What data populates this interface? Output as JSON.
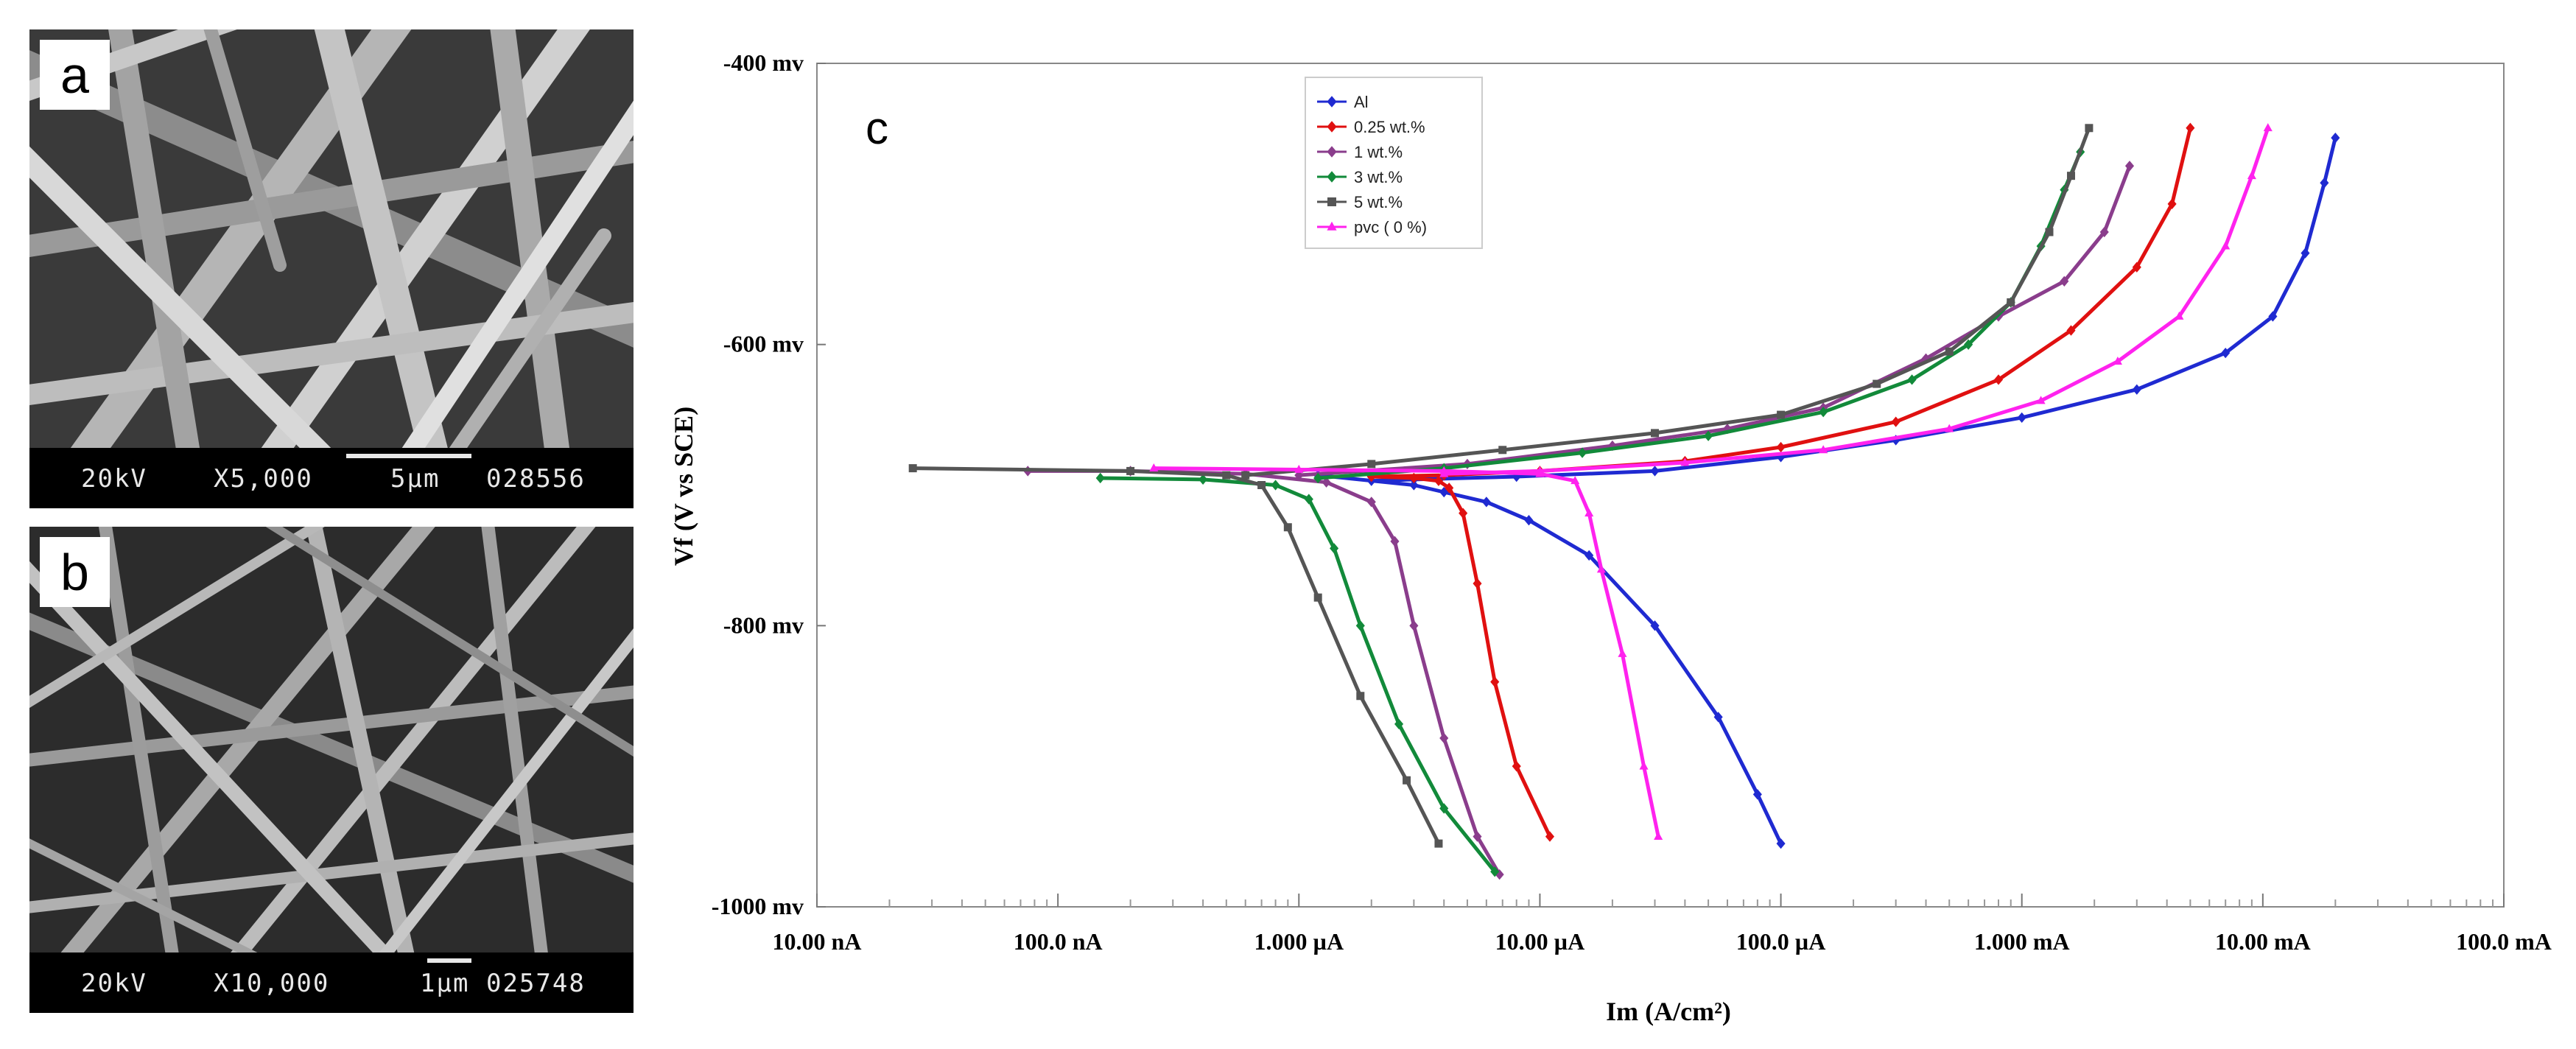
{
  "panels": {
    "a": {
      "letter": "a",
      "kv": "20kV",
      "magnification": "X5,000",
      "scale_label": "5μm",
      "file_number": "028556"
    },
    "b": {
      "letter": "b",
      "kv": "20kV",
      "magnification": "X10,000",
      "scale_label": "1μm",
      "file_number": "025748"
    },
    "c": {
      "letter": "c"
    }
  },
  "chart_data": {
    "type": "line",
    "xlabel": "Im (A/cm²)",
    "ylabel": "Vf (V vs SCE)",
    "x_scale": "log",
    "xlim": [
      1e-08,
      0.1
    ],
    "ylim": [
      -1000,
      -400
    ],
    "x_ticks": [
      {
        "value": 1e-08,
        "label": "10.00 nA"
      },
      {
        "value": 1e-07,
        "label": "100.0 nA"
      },
      {
        "value": 1e-06,
        "label": "1.000  µA"
      },
      {
        "value": 1e-05,
        "label": "10.00 µA"
      },
      {
        "value": 0.0001,
        "label": "100.0 µA"
      },
      {
        "value": 0.001,
        "label": "1.000 mA"
      },
      {
        "value": 0.01,
        "label": "10.00 mA"
      },
      {
        "value": 0.1,
        "label": "100.0 mA"
      }
    ],
    "y_ticks": [
      {
        "value": -400,
        "label": "-400 mv"
      },
      {
        "value": -600,
        "label": "-600 mv"
      },
      {
        "value": -800,
        "label": "-800 mv"
      },
      {
        "value": -1000,
        "label": "-1000 mv"
      }
    ],
    "legend_position": "top-center",
    "series": [
      {
        "name": "Al",
        "color": "#1f2ad1",
        "marker": "diamond",
        "cathodic": [
          [
            1.2e-06,
            -693
          ],
          [
            3e-06,
            -700
          ],
          [
            4e-06,
            -705
          ],
          [
            6e-06,
            -712
          ],
          [
            9e-06,
            -725
          ],
          [
            1.6e-05,
            -750
          ],
          [
            3e-05,
            -800
          ],
          [
            5.5e-05,
            -865
          ],
          [
            8e-05,
            -920
          ],
          [
            0.0001,
            -955
          ]
        ],
        "anodic": [
          [
            2e-06,
            -697
          ],
          [
            3e-06,
            -696
          ],
          [
            8e-06,
            -694
          ],
          [
            3e-05,
            -690
          ],
          [
            0.0001,
            -680
          ],
          [
            0.0003,
            -668
          ],
          [
            0.001,
            -652
          ],
          [
            0.003,
            -632
          ],
          [
            0.007,
            -606
          ],
          [
            0.011,
            -580
          ],
          [
            0.015,
            -535
          ],
          [
            0.018,
            -485
          ],
          [
            0.02,
            -453
          ]
        ]
      },
      {
        "name": "0.25 wt.%",
        "color": "#e01010",
        "marker": "diamond",
        "cathodic": [
          [
            2e-06,
            -694
          ],
          [
            3e-06,
            -695
          ],
          [
            3.8e-06,
            -697
          ],
          [
            4.2e-06,
            -702
          ],
          [
            4.8e-06,
            -720
          ],
          [
            5.5e-06,
            -770
          ],
          [
            6.5e-06,
            -840
          ],
          [
            8e-06,
            -900
          ],
          [
            1.1e-05,
            -950
          ]
        ],
        "anodic": [
          [
            2e-06,
            -694
          ],
          [
            4e-06,
            -693
          ],
          [
            1e-05,
            -690
          ],
          [
            4e-05,
            -683
          ],
          [
            0.0001,
            -673
          ],
          [
            0.0003,
            -655
          ],
          [
            0.0008,
            -625
          ],
          [
            0.0016,
            -590
          ],
          [
            0.003,
            -545
          ],
          [
            0.0042,
            -500
          ],
          [
            0.005,
            -446
          ]
        ]
      },
      {
        "name": "1 wt.%",
        "color": "#8a3d8c",
        "marker": "diamond",
        "cathodic": [
          [
            7.5e-08,
            -690
          ],
          [
            2e-07,
            -690
          ],
          [
            6e-07,
            -692
          ],
          [
            1.3e-06,
            -698
          ],
          [
            2e-06,
            -712
          ],
          [
            2.5e-06,
            -740
          ],
          [
            3e-06,
            -800
          ],
          [
            4e-06,
            -880
          ],
          [
            5.5e-06,
            -950
          ],
          [
            6.8e-06,
            -977
          ]
        ],
        "anodic": [
          [
            1e-06,
            -693
          ],
          [
            5e-06,
            -685
          ],
          [
            2e-05,
            -672
          ],
          [
            6e-05,
            -660
          ],
          [
            0.00015,
            -645
          ],
          [
            0.0004,
            -610
          ],
          [
            0.0008,
            -580
          ],
          [
            0.0015,
            -555
          ],
          [
            0.0022,
            -520
          ],
          [
            0.0028,
            -473
          ]
        ]
      },
      {
        "name": "3 wt.%",
        "color": "#128a3a",
        "marker": "diamond",
        "cathodic": [
          [
            1.5e-07,
            -695
          ],
          [
            4e-07,
            -696
          ],
          [
            8e-07,
            -700
          ],
          [
            1.1e-06,
            -710
          ],
          [
            1.4e-06,
            -745
          ],
          [
            1.8e-06,
            -800
          ],
          [
            2.6e-06,
            -870
          ],
          [
            4e-06,
            -930
          ],
          [
            6.5e-06,
            -975
          ]
        ],
        "anodic": [
          [
            1.2e-06,
            -695
          ],
          [
            4e-06,
            -688
          ],
          [
            1.5e-05,
            -677
          ],
          [
            5e-05,
            -665
          ],
          [
            0.00015,
            -648
          ],
          [
            0.00035,
            -625
          ],
          [
            0.0006,
            -600
          ],
          [
            0.0009,
            -570
          ],
          [
            0.0012,
            -530
          ],
          [
            0.0015,
            -490
          ],
          [
            0.00175,
            -463
          ]
        ]
      },
      {
        "name": "5 wt.%",
        "color": "#555555",
        "marker": "square",
        "cathodic": [
          [
            2.5e-08,
            -688
          ],
          [
            2e-07,
            -690
          ],
          [
            5e-07,
            -693
          ],
          [
            7e-07,
            -700
          ],
          [
            9e-07,
            -730
          ],
          [
            1.2e-06,
            -780
          ],
          [
            1.8e-06,
            -850
          ],
          [
            2.8e-06,
            -910
          ],
          [
            3.8e-06,
            -955
          ]
        ],
        "anodic": [
          [
            6e-07,
            -693
          ],
          [
            2e-06,
            -685
          ],
          [
            7e-06,
            -675
          ],
          [
            3e-05,
            -663
          ],
          [
            0.0001,
            -650
          ],
          [
            0.00025,
            -628
          ],
          [
            0.0005,
            -605
          ],
          [
            0.0009,
            -570
          ],
          [
            0.0013,
            -520
          ],
          [
            0.0016,
            -480
          ],
          [
            0.0019,
            -446
          ]
        ]
      },
      {
        "name": "pvc ( 0 %)",
        "color": "#ff22ee",
        "marker": "triangle",
        "cathodic": [
          [
            2.5e-07,
            -688
          ],
          [
            1e-06,
            -689
          ],
          [
            4e-06,
            -690
          ],
          [
            1e-05,
            -692
          ],
          [
            1.4e-05,
            -697
          ],
          [
            1.6e-05,
            -720
          ],
          [
            1.8e-05,
            -760
          ],
          [
            2.2e-05,
            -820
          ],
          [
            2.7e-05,
            -900
          ],
          [
            3.1e-05,
            -950
          ]
        ],
        "anodic": [
          [
            4e-06,
            -692
          ],
          [
            1e-05,
            -690
          ],
          [
            4e-05,
            -684
          ],
          [
            0.00015,
            -675
          ],
          [
            0.0005,
            -660
          ],
          [
            0.0012,
            -640
          ],
          [
            0.0025,
            -612
          ],
          [
            0.0045,
            -580
          ],
          [
            0.007,
            -530
          ],
          [
            0.009,
            -480
          ],
          [
            0.0105,
            -446
          ]
        ]
      }
    ]
  }
}
